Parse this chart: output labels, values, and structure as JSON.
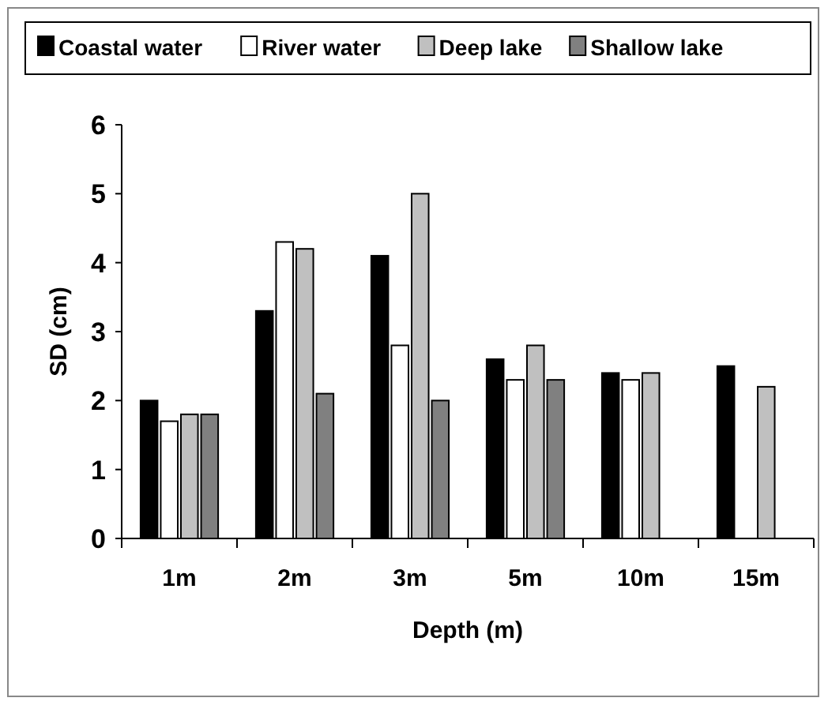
{
  "chart_data": {
    "type": "bar",
    "xlabel": "Depth (m)",
    "ylabel": "SD (cm)",
    "categories": [
      "1m",
      "2m",
      "3m",
      "5m",
      "10m",
      "15m"
    ],
    "series": [
      {
        "name": "Coastal water",
        "color": "#000000",
        "values": [
          2.0,
          3.3,
          4.1,
          2.6,
          2.4,
          2.5
        ]
      },
      {
        "name": "River water",
        "color": "#ffffff",
        "values": [
          1.7,
          4.3,
          2.8,
          2.3,
          2.3,
          null
        ]
      },
      {
        "name": "Deep lake",
        "color": "#c0c0c0",
        "values": [
          1.8,
          4.2,
          5.0,
          2.8,
          2.4,
          2.2
        ]
      },
      {
        "name": "Shallow lake",
        "color": "#808080",
        "values": [
          1.8,
          2.1,
          2.0,
          2.3,
          null,
          null
        ]
      }
    ],
    "ylim": [
      0,
      6
    ],
    "yticks": [
      0,
      1,
      2,
      3,
      4,
      5,
      6
    ],
    "grid": false,
    "legend": "top"
  }
}
